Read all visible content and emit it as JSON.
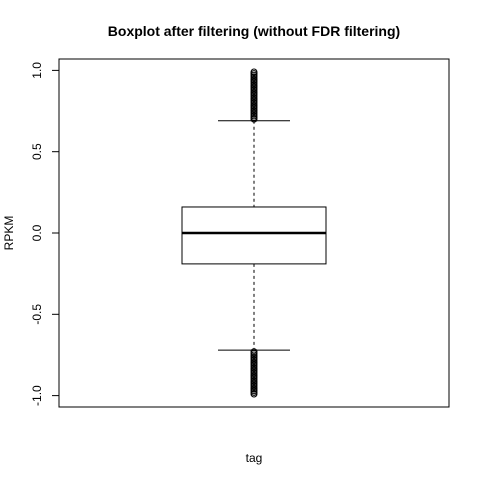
{
  "chart_data": {
    "type": "boxplot",
    "title": "Boxplot after filtering (without FDR filtering)",
    "xlabel": "tag",
    "ylabel": "RPKM",
    "ylim": [
      -1.07,
      1.07
    ],
    "yticks": [
      -1.0,
      -0.5,
      0.0,
      0.5,
      1.0
    ],
    "ytick_labels": [
      "-1.0",
      "-0.5",
      "0.0",
      "0.5",
      "1.0"
    ],
    "grid": false,
    "legend": "none",
    "box": {
      "lower_whisker": -0.72,
      "q1": -0.19,
      "median": 0.0,
      "q3": 0.16,
      "upper_whisker": 0.69
    },
    "outliers": [
      0.7,
      0.71,
      0.72,
      0.73,
      0.74,
      0.75,
      0.76,
      0.77,
      0.78,
      0.79,
      0.8,
      0.81,
      0.82,
      0.83,
      0.84,
      0.85,
      0.86,
      0.87,
      0.88,
      0.89,
      0.9,
      0.91,
      0.92,
      0.93,
      0.94,
      0.95,
      0.96,
      0.97,
      0.98,
      0.99,
      -0.73,
      -0.74,
      -0.75,
      -0.76,
      -0.77,
      -0.78,
      -0.79,
      -0.8,
      -0.81,
      -0.82,
      -0.83,
      -0.84,
      -0.85,
      -0.86,
      -0.87,
      -0.88,
      -0.89,
      -0.9,
      -0.91,
      -0.92,
      -0.93,
      -0.94,
      -0.95,
      -0.96,
      -0.97,
      -0.98,
      -0.99
    ]
  }
}
